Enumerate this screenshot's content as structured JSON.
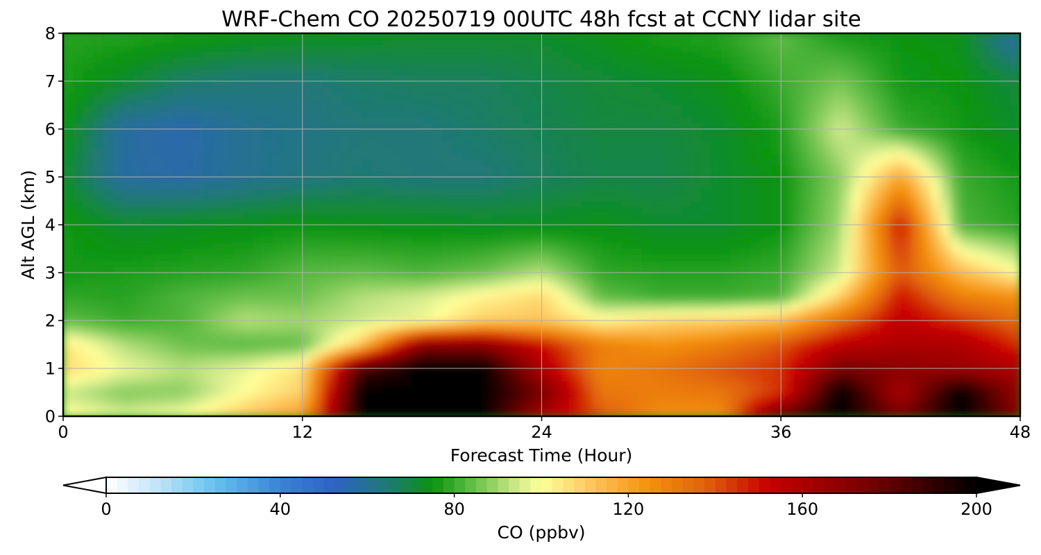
{
  "chart_data": {
    "type": "heatmap",
    "title": "WRF-Chem CO  20250719 00UTC 48h fcst at CCNY lidar site",
    "xlabel": "Forecast Time (Hour)",
    "ylabel": "Alt AGL (km)",
    "xlim": [
      0,
      48
    ],
    "ylim": [
      0,
      8
    ],
    "x_ticks": [
      "0",
      "12",
      "24",
      "36",
      "48"
    ],
    "y_ticks": [
      "0",
      "1",
      "2",
      "3",
      "4",
      "5",
      "6",
      "7",
      "8"
    ],
    "grid": true,
    "hours": [
      0,
      3,
      6,
      9,
      12,
      15,
      18,
      21,
      24,
      27,
      30,
      33,
      36,
      39,
      42,
      45,
      48
    ],
    "altitudes_km": [
      0,
      0.5,
      1,
      1.5,
      2,
      2.5,
      3,
      4,
      5,
      6,
      7,
      8
    ],
    "co_ppbv": [
      [
        102,
        96,
        100,
        112,
        122,
        200,
        200,
        200,
        160,
        140,
        125,
        125,
        180,
        200,
        175,
        200,
        170
      ],
      [
        94,
        87,
        88,
        100,
        110,
        200,
        200,
        200,
        175,
        132,
        130,
        132,
        145,
        200,
        160,
        200,
        165
      ],
      [
        108,
        98,
        92,
        97,
        106,
        185,
        200,
        200,
        160,
        128,
        132,
        140,
        145,
        175,
        170,
        165,
        160
      ],
      [
        105,
        92,
        85,
        83,
        84,
        112,
        170,
        170,
        150,
        130,
        125,
        130,
        140,
        155,
        160,
        160,
        145
      ],
      [
        84,
        80,
        82,
        92,
        90,
        94,
        98,
        110,
        112,
        102,
        108,
        110,
        115,
        135,
        155,
        145,
        135
      ],
      [
        79,
        78,
        82,
        85,
        85,
        92,
        95,
        102,
        108,
        84,
        80,
        80,
        82,
        110,
        150,
        130,
        125
      ],
      [
        76,
        77,
        78,
        79,
        83,
        84,
        82,
        85,
        92,
        79,
        78,
        78,
        80,
        95,
        140,
        115,
        100
      ],
      [
        76,
        72,
        73,
        74,
        75,
        74,
        74,
        73,
        73,
        74,
        72,
        72,
        75,
        90,
        150,
        82,
        78
      ],
      [
        72,
        58,
        57,
        60,
        63,
        65,
        64,
        64,
        67,
        69,
        69,
        72,
        75,
        88,
        120,
        80,
        76
      ],
      [
        75,
        58,
        56,
        60,
        62,
        64,
        64,
        66,
        68,
        70,
        70,
        72,
        77,
        95,
        80,
        76,
        72
      ],
      [
        77,
        72,
        66,
        64,
        64,
        66,
        67,
        67,
        69,
        71,
        72,
        74,
        80,
        86,
        76,
        75,
        70
      ],
      [
        78,
        78,
        77,
        75,
        74,
        73,
        72,
        72,
        72,
        74,
        77,
        78,
        84,
        76,
        75,
        74,
        55
      ]
    ],
    "colorbar": {
      "label": "CO  (ppbv)",
      "ticks": [
        "0",
        "40",
        "80",
        "120",
        "160",
        "200"
      ],
      "range": [
        0,
        200
      ],
      "extend": "both"
    },
    "colormap_stops": [
      {
        "v": 0,
        "c": "#ffffff"
      },
      {
        "v": 12,
        "c": "#bfe3f7"
      },
      {
        "v": 25,
        "c": "#66c2ee"
      },
      {
        "v": 40,
        "c": "#3b82d6"
      },
      {
        "v": 52,
        "c": "#3062c6"
      },
      {
        "v": 65,
        "c": "#1f7a72"
      },
      {
        "v": 75,
        "c": "#0a9410"
      },
      {
        "v": 84,
        "c": "#62bd46"
      },
      {
        "v": 95,
        "c": "#d6ec8e"
      },
      {
        "v": 100,
        "c": "#ffff99"
      },
      {
        "v": 112,
        "c": "#fdc35c"
      },
      {
        "v": 124,
        "c": "#f5940f"
      },
      {
        "v": 138,
        "c": "#e0600a"
      },
      {
        "v": 152,
        "c": "#c80000"
      },
      {
        "v": 175,
        "c": "#780000"
      },
      {
        "v": 200,
        "c": "#000000"
      }
    ]
  }
}
